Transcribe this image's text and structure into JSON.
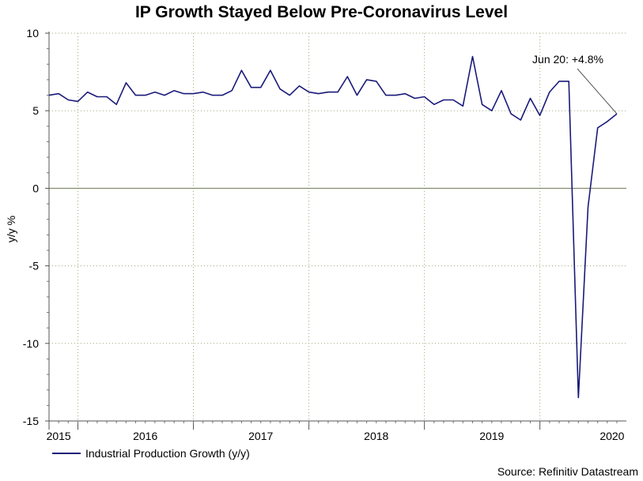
{
  "chart_data": {
    "type": "line",
    "title": "IP Growth Stayed Below Pre-Coronavirus Level",
    "xlabel": "",
    "ylabel": "y/y %",
    "ylim": [
      -15,
      10
    ],
    "yticks": [
      10,
      5,
      0,
      -5,
      -10,
      -15
    ],
    "year_labels": [
      "2015",
      "2016",
      "2017",
      "2018",
      "2019",
      "2020"
    ],
    "grid": true,
    "series": [
      {
        "name": "Industrial Production Growth (y/y)",
        "color": "#1a1a7a",
        "x_start": "Oct 2014",
        "values": [
          6.0,
          6.1,
          5.7,
          5.6,
          6.2,
          5.9,
          5.9,
          5.4,
          6.8,
          6.0,
          6.0,
          6.2,
          6.0,
          6.3,
          6.1,
          6.1,
          6.2,
          6.0,
          6.0,
          6.3,
          7.6,
          6.5,
          6.5,
          7.6,
          6.4,
          6.0,
          6.6,
          6.2,
          6.1,
          6.2,
          6.2,
          7.2,
          6.0,
          7.0,
          6.9,
          6.0,
          6.0,
          6.1,
          5.8,
          5.9,
          5.4,
          5.7,
          5.7,
          5.3,
          8.5,
          5.4,
          5.0,
          6.3,
          4.8,
          4.4,
          5.8,
          4.7,
          6.2,
          6.9,
          6.9,
          -13.5,
          -1.2,
          3.9,
          4.3,
          4.8
        ]
      }
    ],
    "annotation": {
      "text": "Jun 20: +4.8%"
    },
    "source": "Source: Refinitiv Datastream"
  }
}
